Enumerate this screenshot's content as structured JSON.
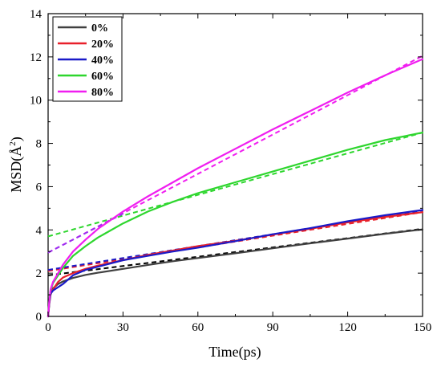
{
  "chart_data": {
    "type": "line",
    "xlabel": "Time(ps)",
    "ylabel_main": "MSD(Å",
    "ylabel_sup": "2",
    "ylabel_close": ")",
    "xlim": [
      0,
      150
    ],
    "ylim": [
      0,
      14
    ],
    "xticks": [
      0,
      30,
      60,
      90,
      120,
      150
    ],
    "yticks": [
      0,
      2,
      4,
      6,
      8,
      10,
      12,
      14
    ],
    "xtick_labels": [
      "0",
      "30",
      "60",
      "90",
      "120",
      "150"
    ],
    "ytick_labels": [
      "0",
      "2",
      "4",
      "6",
      "8",
      "10",
      "12",
      "14"
    ],
    "grid": false,
    "legend_position": "top-left",
    "series": [
      {
        "name": "0%",
        "color": "#404040",
        "fit_color": "#000000",
        "x": [
          0,
          0.5,
          1,
          2,
          4,
          6,
          10,
          15,
          20,
          30,
          40,
          50,
          60,
          75,
          90,
          105,
          120,
          135,
          150
        ],
        "y": [
          0,
          0.6,
          1.0,
          1.3,
          1.5,
          1.62,
          1.78,
          1.92,
          2.02,
          2.2,
          2.38,
          2.55,
          2.7,
          2.92,
          3.15,
          3.38,
          3.6,
          3.82,
          4.02
        ],
        "fit": [
          1.9,
          4.05
        ]
      },
      {
        "name": "20%",
        "color": "#e8202a",
        "fit_color": "#e8202a",
        "x": [
          0,
          0.5,
          1,
          2,
          4,
          6,
          10,
          15,
          20,
          30,
          40,
          50,
          60,
          75,
          90,
          105,
          120,
          135,
          150
        ],
        "y": [
          0,
          0.7,
          1.05,
          1.25,
          1.6,
          1.8,
          2.0,
          2.2,
          2.35,
          2.6,
          2.85,
          3.05,
          3.25,
          3.5,
          3.78,
          4.05,
          4.35,
          4.6,
          4.82
        ],
        "fit": [
          2.1,
          4.82
        ]
      },
      {
        "name": "40%",
        "color": "#1a1ac8",
        "fit_color": "#1a1ac8",
        "x": [
          0,
          0.5,
          1,
          2,
          4,
          6,
          10,
          15,
          20,
          30,
          40,
          50,
          60,
          75,
          90,
          105,
          120,
          135,
          150
        ],
        "y": [
          0,
          0.7,
          1.05,
          1.2,
          1.35,
          1.5,
          1.9,
          2.15,
          2.3,
          2.6,
          2.8,
          3.0,
          3.18,
          3.48,
          3.8,
          4.08,
          4.4,
          4.68,
          4.92
        ],
        "fit": [
          2.15,
          4.9
        ]
      },
      {
        "name": "60%",
        "color": "#2ed62e",
        "fit_color": "#2ed62e",
        "x": [
          0,
          0.5,
          1,
          2,
          4,
          6,
          10,
          15,
          20,
          30,
          40,
          50,
          60,
          75,
          90,
          105,
          120,
          135,
          150
        ],
        "y": [
          0,
          0.75,
          1.2,
          1.55,
          1.9,
          2.25,
          2.8,
          3.25,
          3.65,
          4.3,
          4.85,
          5.3,
          5.7,
          6.2,
          6.7,
          7.2,
          7.7,
          8.15,
          8.5
        ],
        "fit": [
          3.7,
          8.5
        ]
      },
      {
        "name": "80%",
        "color": "#f01ef0",
        "fit_color": "#f01ef0",
        "x": [
          0,
          0.5,
          1,
          2,
          4,
          6,
          10,
          15,
          20,
          30,
          40,
          50,
          60,
          75,
          90,
          105,
          120,
          135,
          150
        ],
        "y": [
          0,
          0.75,
          1.25,
          1.6,
          2.0,
          2.4,
          3.0,
          3.55,
          4.05,
          4.85,
          5.55,
          6.2,
          6.85,
          7.75,
          8.65,
          9.5,
          10.35,
          11.15,
          11.9
        ],
        "fit": [
          2.95,
          12.05
        ]
      }
    ],
    "extra_fit_lines": [
      {
        "color": "#9b30f0",
        "x0": 0,
        "y0": 2.95,
        "x1": 30,
        "y1": 4.75
      }
    ]
  }
}
